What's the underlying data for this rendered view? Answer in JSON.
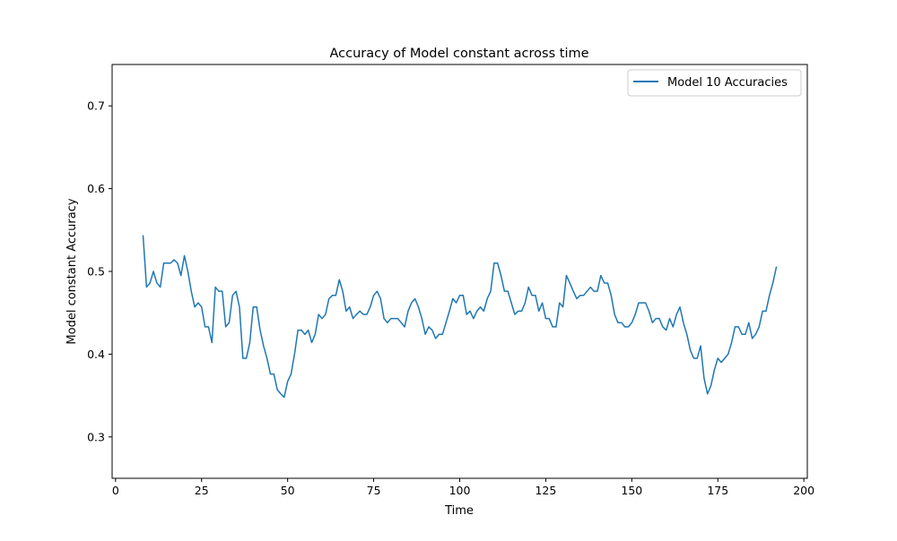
{
  "chart_data": {
    "type": "line",
    "title": "Accuracy of Model constant across time",
    "xlabel": "Time",
    "ylabel": "Model constant Accuracy",
    "xlim": [
      -1,
      201
    ],
    "ylim": [
      0.25,
      0.75
    ],
    "xticks": [
      0,
      25,
      50,
      75,
      100,
      125,
      150,
      175,
      200
    ],
    "yticks": [
      0.3,
      0.4,
      0.5,
      0.6,
      0.7
    ],
    "ytick_labels": [
      "0.3",
      "0.4",
      "0.5",
      "0.6",
      "0.7"
    ],
    "grid": false,
    "legend_position": "top-right",
    "colors": {
      "line": "#1f77b4"
    },
    "series": [
      {
        "name": "Model 10 Accuracies",
        "x": [
          8,
          9,
          10,
          11,
          12,
          13,
          14,
          15,
          16,
          17,
          18,
          19,
          20,
          21,
          22,
          23,
          24,
          25,
          26,
          27,
          28,
          29,
          30,
          31,
          32,
          33,
          34,
          35,
          36,
          37,
          38,
          39,
          40,
          41,
          42,
          43,
          44,
          45,
          46,
          47,
          48,
          49,
          50,
          51,
          52,
          53,
          54,
          55,
          56,
          57,
          58,
          59,
          60,
          61,
          62,
          63,
          64,
          65,
          66,
          67,
          68,
          69,
          70,
          71,
          72,
          73,
          74,
          75,
          76,
          77,
          78,
          79,
          80,
          81,
          82,
          83,
          84,
          85,
          86,
          87,
          88,
          89,
          90,
          91,
          92,
          93,
          94,
          95,
          96,
          97,
          98,
          99,
          100,
          101,
          102,
          103,
          104,
          105,
          106,
          107,
          108,
          109,
          110,
          111,
          112,
          113,
          114,
          115,
          116,
          117,
          118,
          119,
          120,
          121,
          122,
          123,
          124,
          125,
          126,
          127,
          128,
          129,
          130,
          131,
          132,
          133,
          134,
          135,
          136,
          137,
          138,
          139,
          140,
          141,
          142,
          143,
          144,
          145,
          146,
          147,
          148,
          149,
          150,
          151,
          152,
          153,
          154,
          155,
          156,
          157,
          158,
          159,
          160,
          161,
          162,
          163,
          164,
          165,
          166,
          167,
          168,
          169,
          170,
          171,
          172,
          173,
          174,
          175,
          176,
          177,
          178,
          179,
          180,
          181,
          182,
          183,
          184,
          185,
          186,
          187,
          188,
          189,
          190,
          191,
          192
        ],
        "values": [
          0.543,
          0.481,
          0.486,
          0.5,
          0.486,
          0.481,
          0.51,
          0.51,
          0.51,
          0.514,
          0.51,
          0.495,
          0.519,
          0.5,
          0.476,
          0.457,
          0.462,
          0.457,
          0.433,
          0.433,
          0.414,
          0.481,
          0.476,
          0.476,
          0.433,
          0.438,
          0.471,
          0.476,
          0.457,
          0.395,
          0.395,
          0.414,
          0.457,
          0.457,
          0.429,
          0.41,
          0.395,
          0.376,
          0.376,
          0.357,
          0.352,
          0.348,
          0.367,
          0.376,
          0.4,
          0.429,
          0.429,
          0.424,
          0.429,
          0.414,
          0.424,
          0.448,
          0.443,
          0.448,
          0.467,
          0.471,
          0.471,
          0.49,
          0.476,
          0.452,
          0.457,
          0.443,
          0.448,
          0.452,
          0.448,
          0.448,
          0.457,
          0.471,
          0.476,
          0.467,
          0.443,
          0.438,
          0.443,
          0.443,
          0.443,
          0.438,
          0.433,
          0.452,
          0.462,
          0.467,
          0.457,
          0.443,
          0.424,
          0.433,
          0.429,
          0.419,
          0.424,
          0.424,
          0.438,
          0.452,
          0.467,
          0.462,
          0.471,
          0.471,
          0.448,
          0.452,
          0.443,
          0.452,
          0.457,
          0.452,
          0.467,
          0.476,
          0.51,
          0.51,
          0.495,
          0.476,
          0.476,
          0.462,
          0.448,
          0.452,
          0.452,
          0.462,
          0.481,
          0.471,
          0.471,
          0.452,
          0.462,
          0.443,
          0.443,
          0.433,
          0.433,
          0.462,
          0.457,
          0.495,
          0.486,
          0.476,
          0.467,
          0.471,
          0.471,
          0.476,
          0.481,
          0.476,
          0.476,
          0.495,
          0.486,
          0.486,
          0.471,
          0.448,
          0.438,
          0.438,
          0.433,
          0.433,
          0.438,
          0.448,
          0.462,
          0.462,
          0.462,
          0.452,
          0.438,
          0.443,
          0.443,
          0.433,
          0.429,
          0.443,
          0.433,
          0.448,
          0.457,
          0.438,
          0.424,
          0.405,
          0.395,
          0.395,
          0.41,
          0.371,
          0.352,
          0.362,
          0.381,
          0.395,
          0.39,
          0.395,
          0.4,
          0.414,
          0.433,
          0.433,
          0.424,
          0.424,
          0.438,
          0.419,
          0.424,
          0.433,
          0.452,
          0.452,
          0.471,
          0.486,
          0.505
        ]
      }
    ]
  }
}
